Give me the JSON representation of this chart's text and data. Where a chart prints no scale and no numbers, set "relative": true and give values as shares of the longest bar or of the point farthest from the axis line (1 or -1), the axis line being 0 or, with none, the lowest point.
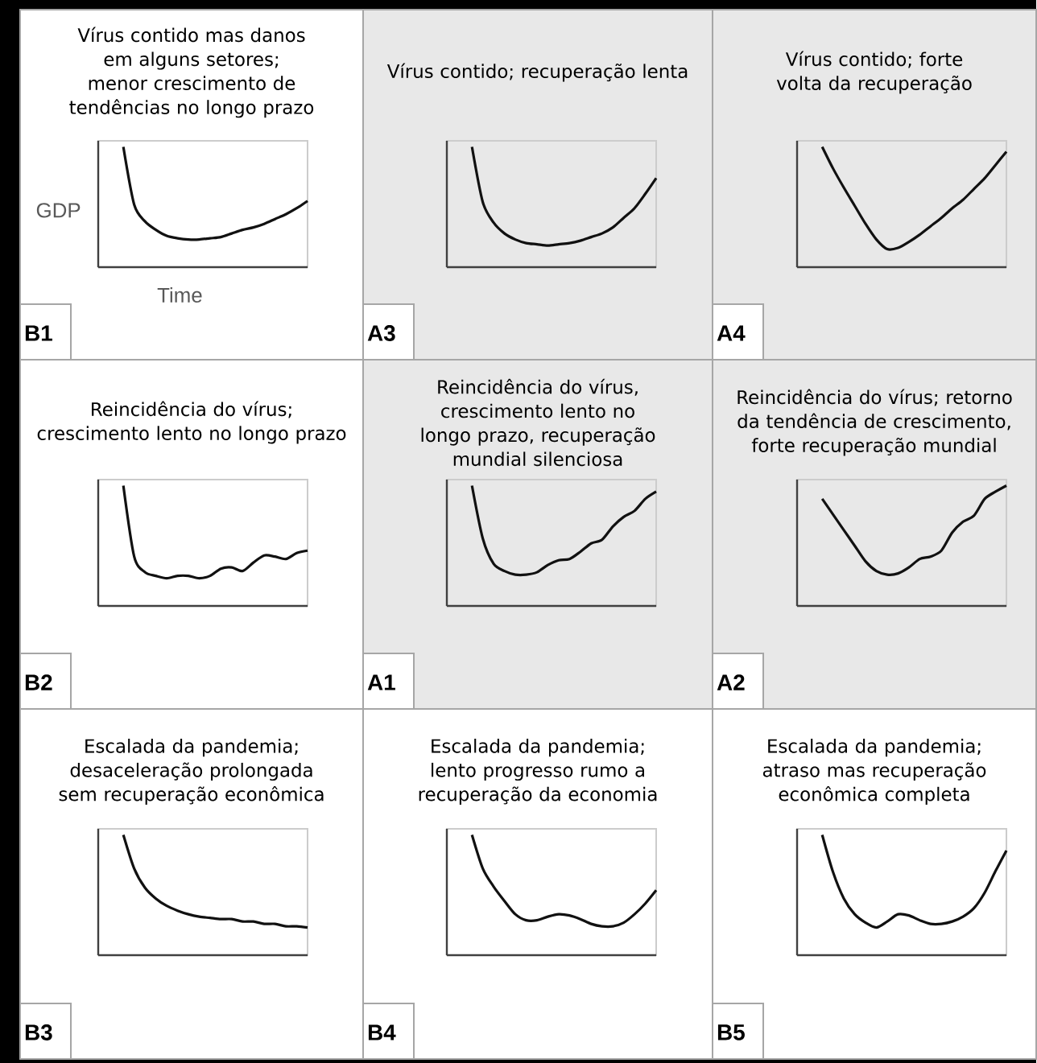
{
  "chart_data": [
    {
      "type": "line",
      "title": "Vírus contido mas danos em alguns setores; menor crescimento de tendências no longo prazo",
      "xlabel": "Time",
      "ylabel": "GDP",
      "annotations": [
        "B1"
      ],
      "relative": true,
      "color": "#111111",
      "categories": [
        null,
        null,
        null,
        null,
        null,
        null,
        null,
        null,
        null,
        null,
        null,
        null,
        null,
        null,
        null,
        null,
        null,
        null
      ],
      "values": [
        1.0,
        0.52,
        0.38,
        0.31,
        0.26,
        0.24,
        0.23,
        0.23,
        0.24,
        0.25,
        0.28,
        0.31,
        0.33,
        0.36,
        0.4,
        0.44,
        0.49,
        0.55
      ]
    },
    {
      "type": "line",
      "title": "Vírus contido; recuperação lenta",
      "annotations": [
        "A3"
      ],
      "relative": true,
      "color": "#111111",
      "categories": [
        null,
        null,
        null,
        null,
        null,
        null,
        null,
        null,
        null,
        null,
        null,
        null,
        null,
        null,
        null,
        null,
        null,
        null
      ],
      "values": [
        1.0,
        0.54,
        0.37,
        0.28,
        0.23,
        0.2,
        0.19,
        0.18,
        0.19,
        0.2,
        0.22,
        0.25,
        0.28,
        0.33,
        0.41,
        0.49,
        0.61,
        0.74
      ]
    },
    {
      "type": "line",
      "title": "Vírus contido; forte volta da recuperação",
      "annotations": [
        "A4"
      ],
      "relative": true,
      "color": "#111111",
      "categories": [
        null,
        null,
        null,
        null,
        null,
        null,
        null,
        null,
        null,
        null,
        null,
        null,
        null,
        null,
        null,
        null,
        null,
        null
      ],
      "values": [
        1.0,
        0.82,
        0.66,
        0.51,
        0.36,
        0.23,
        0.15,
        0.16,
        0.21,
        0.27,
        0.34,
        0.41,
        0.49,
        0.56,
        0.65,
        0.74,
        0.85,
        0.96
      ]
    },
    {
      "type": "line",
      "title": "Reincidência do vírus; crescimento lento no longo prazo",
      "annotations": [
        "B2"
      ],
      "relative": true,
      "color": "#111111",
      "categories": [
        null,
        null,
        null,
        null,
        null,
        null,
        null,
        null,
        null,
        null,
        null,
        null,
        null,
        null,
        null,
        null,
        null,
        null
      ],
      "values": [
        1.0,
        0.41,
        0.28,
        0.25,
        0.23,
        0.25,
        0.25,
        0.23,
        0.25,
        0.31,
        0.32,
        0.29,
        0.36,
        0.42,
        0.41,
        0.39,
        0.44,
        0.46
      ]
    },
    {
      "type": "line",
      "title": "Reincidência do vírus, crescimento lento no longo prazo, recuperação mundial silenciosa",
      "annotations": [
        "A1"
      ],
      "relative": true,
      "color": "#111111",
      "categories": [
        null,
        null,
        null,
        null,
        null,
        null,
        null,
        null,
        null,
        null,
        null,
        null,
        null,
        null,
        null,
        null,
        null,
        null
      ],
      "values": [
        1.0,
        0.56,
        0.35,
        0.29,
        0.26,
        0.26,
        0.28,
        0.34,
        0.38,
        0.39,
        0.45,
        0.52,
        0.55,
        0.66,
        0.74,
        0.79,
        0.89,
        0.95
      ]
    },
    {
      "type": "line",
      "title": "Reincidência do vírus; retorno da tendência de crescimento, forte recuperação mundial",
      "annotations": [
        "A2"
      ],
      "relative": true,
      "color": "#111111",
      "categories": [
        null,
        null,
        null,
        null,
        null,
        null,
        null,
        null,
        null,
        null,
        null,
        null,
        null,
        null,
        null,
        null,
        null,
        null
      ],
      "values": [
        0.89,
        0.76,
        0.63,
        0.5,
        0.37,
        0.29,
        0.26,
        0.27,
        0.32,
        0.39,
        0.41,
        0.46,
        0.61,
        0.7,
        0.75,
        0.89,
        0.95,
        1.0
      ]
    },
    {
      "type": "line",
      "title": "Escalada da pandemia; desaceleração prolongada sem recuperação econômica",
      "annotations": [
        "B3"
      ],
      "relative": true,
      "color": "#111111",
      "categories": [
        null,
        null,
        null,
        null,
        null,
        null,
        null,
        null,
        null,
        null,
        null,
        null,
        null,
        null,
        null,
        null,
        null,
        null
      ],
      "values": [
        1.0,
        0.72,
        0.56,
        0.47,
        0.41,
        0.37,
        0.34,
        0.32,
        0.31,
        0.3,
        0.3,
        0.28,
        0.28,
        0.26,
        0.26,
        0.24,
        0.24,
        0.23
      ]
    },
    {
      "type": "line",
      "title": "Escalada da pandemia; lento progresso rumo a recuperação da economia",
      "annotations": [
        "B4"
      ],
      "relative": true,
      "color": "#111111",
      "categories": [
        null,
        null,
        null,
        null,
        null,
        null,
        null,
        null,
        null,
        null,
        null,
        null,
        null,
        null,
        null,
        null,
        null,
        null
      ],
      "values": [
        1.0,
        0.72,
        0.57,
        0.45,
        0.34,
        0.29,
        0.29,
        0.32,
        0.34,
        0.33,
        0.3,
        0.26,
        0.24,
        0.24,
        0.27,
        0.34,
        0.43,
        0.54
      ]
    },
    {
      "type": "line",
      "title": "Escalada da pandemia; atraso mas recuperação econômica completa",
      "annotations": [
        "B5"
      ],
      "relative": true,
      "color": "#111111",
      "categories": [
        null,
        null,
        null,
        null,
        null,
        null,
        null,
        null,
        null,
        null,
        null,
        null,
        null,
        null,
        null,
        null,
        null,
        null
      ],
      "values": [
        1.0,
        0.69,
        0.47,
        0.34,
        0.27,
        0.23,
        0.28,
        0.34,
        0.33,
        0.29,
        0.26,
        0.26,
        0.28,
        0.32,
        0.39,
        0.52,
        0.7,
        0.87
      ]
    }
  ]
}
